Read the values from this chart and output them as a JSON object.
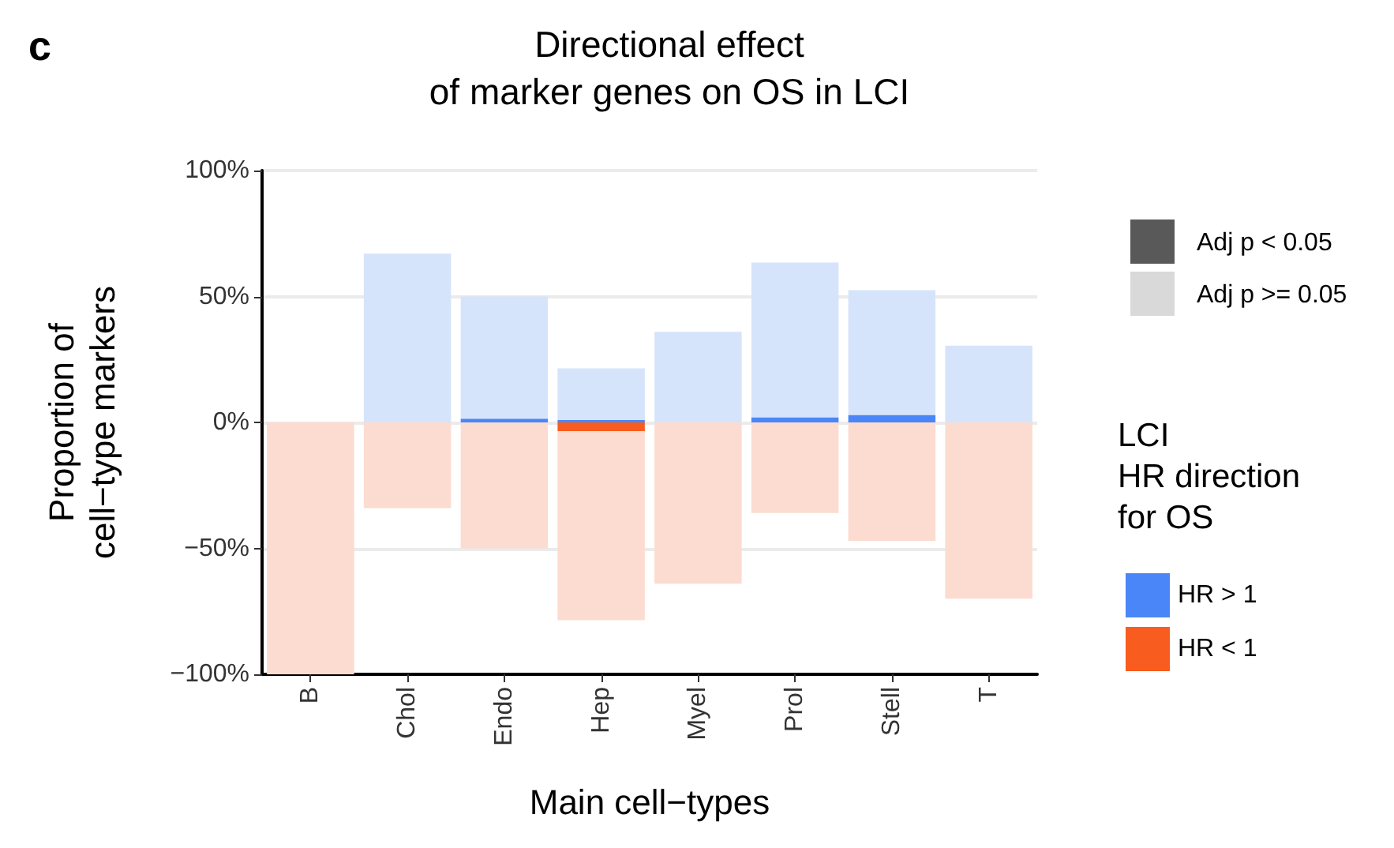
{
  "chart_data": {
    "type": "bar",
    "title": "Directional effect\nof marker genes on OS in LCI",
    "xlabel": "Main cell−types",
    "ylabel": "Proportion of\ncell−type markers",
    "legend_title": "LCI\nHR direction\nfor OS",
    "annotations": [
      "c",
      "Adj p < 0.05",
      "Adj p >= 0.05"
    ],
    "categories": [
      "B",
      "Chol",
      "Endo",
      "Hep",
      "Myel",
      "Prol",
      "Stell",
      "T"
    ],
    "stacked": true,
    "grid": "y",
    "legend": "right",
    "ylim": [
      -100,
      100
    ],
    "yticks": [
      {
        "value": -100,
        "label": "−100%"
      },
      {
        "value": -50,
        "label": "−50%"
      },
      {
        "value": 0,
        "label": "0%"
      },
      {
        "value": 50,
        "label": "50%"
      },
      {
        "value": 100,
        "label": "100%"
      }
    ],
    "series": [
      {
        "name": "HR > 1",
        "color": "#4a86f7",
        "values": [
          null,
          null,
          1.5,
          1,
          null,
          2,
          3,
          null
        ]
      },
      {
        "color": "#d6e4fb",
        "values": [
          null,
          67,
          48.5,
          20.5,
          36,
          61.5,
          49.5,
          30.5
        ]
      },
      {
        "name": "HR < 1",
        "color": "#f85c1e",
        "values": [
          null,
          null,
          null,
          -3.5,
          null,
          null,
          null,
          null
        ]
      },
      {
        "color": "#fcdcd0",
        "values": [
          -100,
          -34,
          -50,
          -75,
          -64,
          -36,
          -47,
          -70
        ]
      }
    ]
  }
}
